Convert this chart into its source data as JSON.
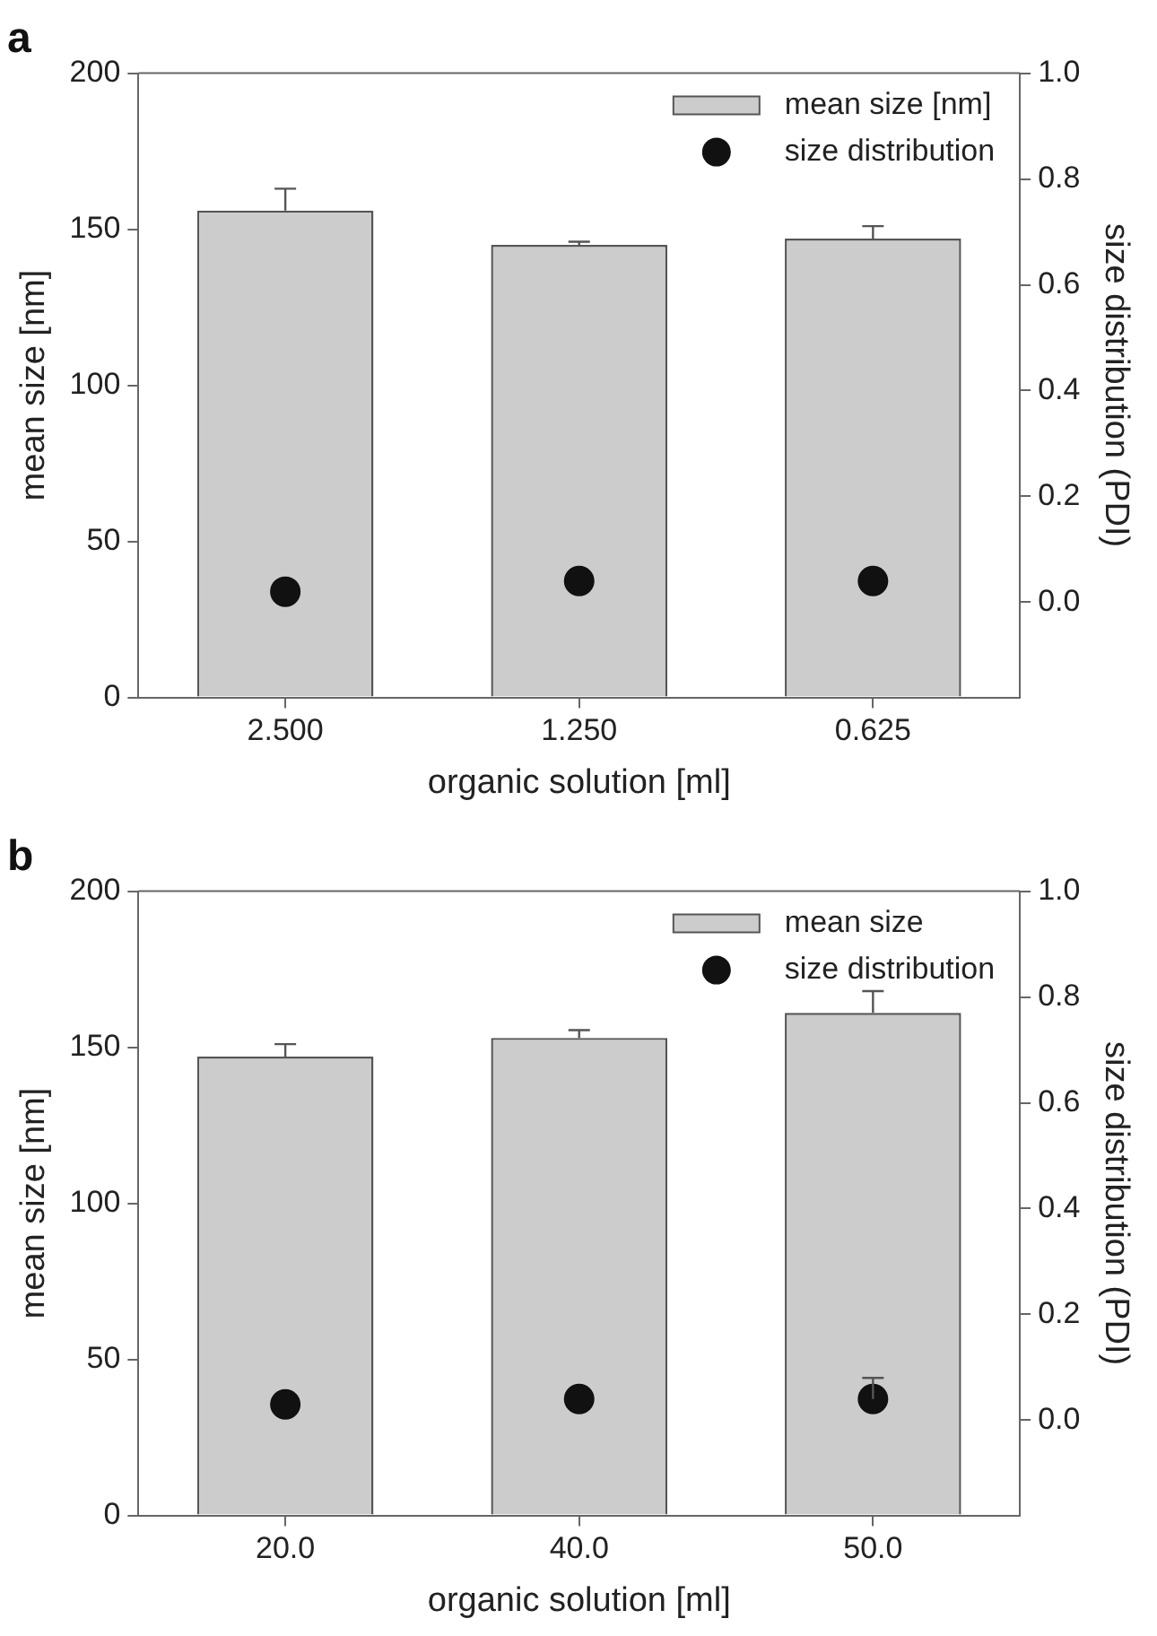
{
  "chart_data": [
    {
      "type": "bar",
      "title": "a",
      "xlabel": "organic solution [ml]",
      "ylabel": "mean size [nm]",
      "y2label": "size distribution (PDI)",
      "categories": [
        "2.500",
        "1.250",
        "0.625"
      ],
      "series": [
        {
          "name": "mean size [nm]",
          "type": "bar",
          "color": "#cccccc",
          "values": [
            156,
            145,
            147
          ],
          "errors": [
            [
              156,
              163
            ],
            [
              145,
              146
            ],
            [
              147,
              151
            ]
          ]
        },
        {
          "name": "size distribution",
          "type": "scatter",
          "axis": "y2",
          "color": "#111111",
          "values": [
            0.02,
            0.04,
            0.04
          ]
        }
      ],
      "ylim": [
        0,
        200
      ],
      "yticks": [
        0,
        50,
        100,
        150,
        200
      ],
      "y2lim": [
        -0.18,
        1.0
      ],
      "y2ticks": [
        {
          "value": 0,
          "label": "0.0"
        },
        {
          "value": 0.2,
          "label": "0.2"
        },
        {
          "value": 0.4,
          "label": "0.4"
        },
        {
          "value": 0.6,
          "label": "0.6"
        },
        {
          "value": 0.8,
          "label": "0.8"
        },
        {
          "value": 1,
          "label": "1.0"
        }
      ],
      "grid": false,
      "legend": "top right",
      "marker": "circle"
    },
    {
      "type": "bar",
      "title": "b",
      "xlabel": "organic solution [ml]",
      "ylabel": "mean size [nm]",
      "y2label": "size distribution (PDI)",
      "categories": [
        "20.0",
        "40.0",
        "50.0"
      ],
      "series": [
        {
          "name": "mean size",
          "type": "bar",
          "color": "#cccccc",
          "values": [
            147,
            153,
            161
          ],
          "errors": [
            [
              147,
              151
            ],
            [
              153,
              155.5
            ],
            [
              161,
              168
            ]
          ]
        },
        {
          "name": "size distribution",
          "type": "scatter",
          "axis": "y2",
          "color": "#111111",
          "values": [
            0.03,
            0.04,
            0.04
          ],
          "errors": [
            null,
            null,
            [
              0.04,
              0.08
            ]
          ]
        }
      ],
      "ylim": [
        0,
        200
      ],
      "yticks": [
        0,
        50,
        100,
        150,
        200
      ],
      "y2lim": [
        -0.18,
        1.0
      ],
      "y2ticks": [
        {
          "value": 0,
          "label": "0.0"
        },
        {
          "value": 0.2,
          "label": "0.2"
        },
        {
          "value": 0.4,
          "label": "0.4"
        },
        {
          "value": 0.6,
          "label": "0.6"
        },
        {
          "value": 0.8,
          "label": "0.8"
        },
        {
          "value": 1,
          "label": "1.0"
        }
      ],
      "grid": false,
      "legend": "top right",
      "marker": "circle"
    }
  ]
}
